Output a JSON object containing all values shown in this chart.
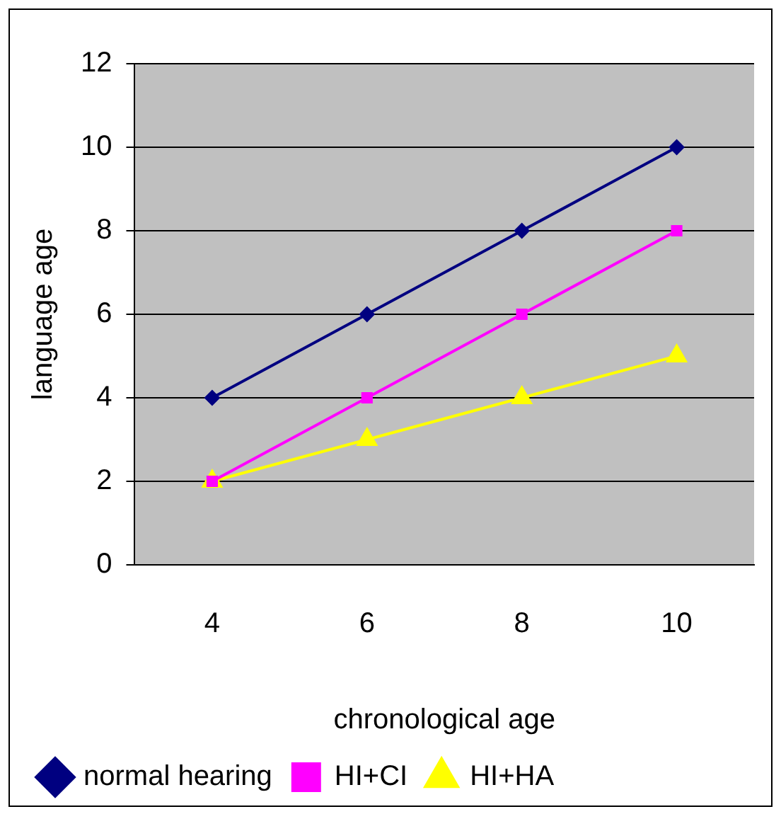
{
  "chart_data": {
    "type": "line",
    "xlabel": "chronological age",
    "ylabel": "language age",
    "categories": [
      "4",
      "6",
      "8",
      "10"
    ],
    "series": [
      {
        "name": "normal hearing",
        "color": "#000080",
        "marker": "diamond",
        "values": [
          4,
          6,
          8,
          10
        ]
      },
      {
        "name": "HI+CI",
        "color": "#ff00ff",
        "marker": "square",
        "values": [
          2,
          4,
          6,
          8
        ]
      },
      {
        "name": "HI+HA",
        "color": "#ffff00",
        "marker": "triangle",
        "values": [
          2,
          3,
          4,
          5
        ]
      }
    ],
    "ylim": [
      0,
      12
    ],
    "yticks": [
      0,
      2,
      4,
      6,
      8,
      10,
      12
    ],
    "grid": "y",
    "legend": "bottom"
  }
}
